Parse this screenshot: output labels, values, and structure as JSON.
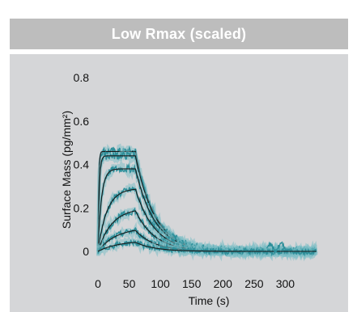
{
  "header": {
    "title": "Low Rmax (scaled)"
  },
  "chart_data": {
    "type": "line",
    "title": "Low Rmax (scaled)",
    "xlabel": "Time (s)",
    "ylabel": "Surface Mass (pg/mm²)",
    "xlim": [
      0,
      350
    ],
    "ylim": [
      -0.05,
      0.85
    ],
    "xticks": [
      0,
      50,
      100,
      150,
      200,
      250,
      300
    ],
    "yticks": [
      0,
      0.2,
      0.4,
      0.6,
      0.8
    ],
    "xtick_labels": [
      "0",
      "50",
      "100",
      "150",
      "200",
      "250",
      "300"
    ],
    "ytick_labels": [
      "0",
      "0.2",
      "0.4",
      "0.6",
      "0.8"
    ],
    "grid": false,
    "legend": "none",
    "association_end_s": 60,
    "colors": {
      "data": "#2e8f9a",
      "data_light": "#7fbfc6",
      "fit": "#1a1a1a"
    },
    "series": [
      {
        "plateau": 0.46,
        "x": [
          0,
          2,
          5,
          10,
          20,
          40,
          60,
          70,
          80,
          100,
          125,
          150,
          175,
          200,
          250,
          350
        ],
        "y": [
          0,
          0.3,
          0.43,
          0.46,
          0.46,
          0.46,
          0.46,
          0.33,
          0.24,
          0.13,
          0.06,
          0.03,
          0.01,
          0.005,
          0.0,
          0.0
        ]
      },
      {
        "plateau": 0.44,
        "x": [
          0,
          3,
          6,
          10,
          20,
          40,
          60,
          70,
          80,
          100,
          125,
          150,
          175,
          200,
          250,
          350
        ],
        "y": [
          0,
          0.25,
          0.38,
          0.42,
          0.44,
          0.44,
          0.44,
          0.32,
          0.23,
          0.12,
          0.06,
          0.03,
          0.01,
          0.005,
          0.0,
          0.0
        ]
      },
      {
        "plateau": 0.38,
        "x": [
          0,
          5,
          10,
          20,
          30,
          40,
          60,
          70,
          80,
          100,
          125,
          150,
          175,
          200,
          250,
          350
        ],
        "y": [
          0,
          0.15,
          0.25,
          0.33,
          0.36,
          0.37,
          0.38,
          0.28,
          0.2,
          0.11,
          0.05,
          0.02,
          0.01,
          0.0,
          0.0,
          0.0
        ]
      },
      {
        "plateau": 0.29,
        "x": [
          0,
          5,
          10,
          20,
          30,
          40,
          60,
          70,
          80,
          100,
          125,
          150,
          175,
          200,
          250,
          350
        ],
        "y": [
          0,
          0.07,
          0.12,
          0.19,
          0.23,
          0.26,
          0.29,
          0.22,
          0.16,
          0.08,
          0.04,
          0.02,
          0.01,
          0.0,
          0.0,
          0.0
        ]
      },
      {
        "plateau": 0.2,
        "x": [
          0,
          5,
          10,
          20,
          30,
          40,
          60,
          70,
          80,
          100,
          125,
          150,
          175,
          200,
          250,
          350
        ],
        "y": [
          0,
          0.03,
          0.06,
          0.11,
          0.14,
          0.17,
          0.2,
          0.15,
          0.11,
          0.06,
          0.03,
          0.01,
          0.0,
          0.0,
          0.0,
          0.0
        ]
      },
      {
        "plateau": 0.11,
        "x": [
          0,
          5,
          10,
          20,
          30,
          40,
          60,
          70,
          80,
          100,
          125,
          150,
          175,
          200,
          250,
          350
        ],
        "y": [
          0,
          0.01,
          0.03,
          0.05,
          0.07,
          0.09,
          0.11,
          0.08,
          0.06,
          0.03,
          0.015,
          0.005,
          0.0,
          0.0,
          0.0,
          0.0
        ]
      },
      {
        "plateau": 0.05,
        "x": [
          0,
          5,
          10,
          20,
          30,
          40,
          60,
          70,
          80,
          100,
          125,
          150,
          175,
          200,
          250,
          350
        ],
        "y": [
          0,
          0.005,
          0.01,
          0.02,
          0.03,
          0.04,
          0.05,
          0.04,
          0.03,
          0.015,
          0.005,
          0.0,
          0.0,
          0.0,
          0.0,
          0.0
        ]
      }
    ]
  }
}
